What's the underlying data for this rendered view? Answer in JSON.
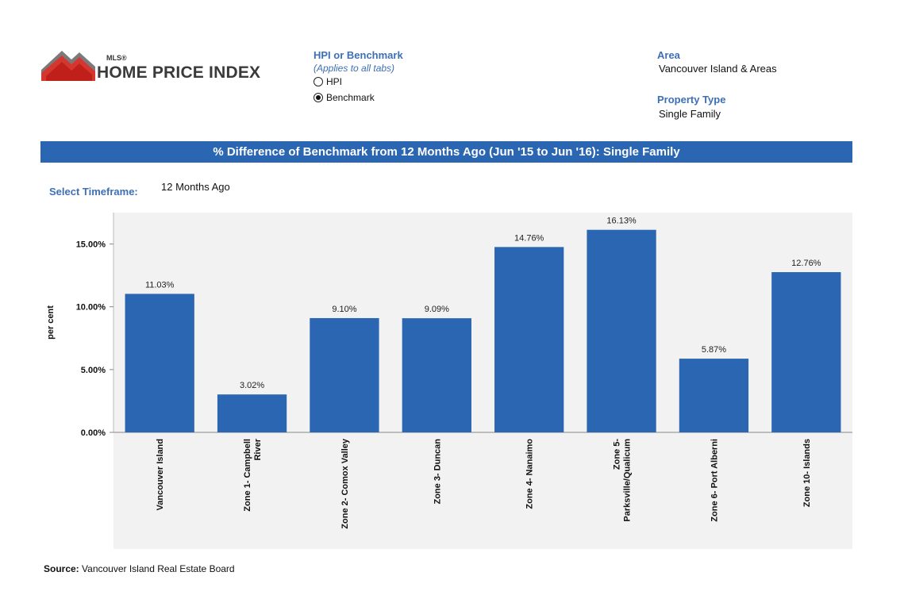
{
  "logo": {
    "mls": "MLS®",
    "name": "HOME PRICE INDEX"
  },
  "hpi_selector": {
    "title": "HPI or Benchmark",
    "subtitle": "(Applies to all tabs)",
    "options": [
      {
        "label": "HPI",
        "selected": false
      },
      {
        "label": "Benchmark",
        "selected": true
      }
    ]
  },
  "area": {
    "label": "Area",
    "value": "Vancouver Island & Areas"
  },
  "property_type": {
    "label": "Property Type",
    "value": "Single Family"
  },
  "timeframe": {
    "label": "Select Timeframe:",
    "value": "12 Months Ago"
  },
  "source": {
    "label": "Source:",
    "value": "Vancouver Island Real Estate Board"
  },
  "colors": {
    "bar": "#2a66b2",
    "banner": "#2a66b2",
    "accent": "#3d6fb6",
    "plot_bg": "#f2f2f2"
  },
  "chart_data": {
    "type": "bar",
    "title": "% Difference of Benchmark from 12 Months Ago (Jun '15 to Jun '16): Single Family",
    "xlabel": "",
    "ylabel": "per cent",
    "ylim": [
      0,
      17.5
    ],
    "yticks": [
      0,
      5,
      10,
      15
    ],
    "ytick_labels": [
      "0.00%",
      "5.00%",
      "10.00%",
      "15.00%"
    ],
    "grid": false,
    "categories": [
      [
        "Vancouver Island"
      ],
      [
        "Zone 1- Campbell",
        "River"
      ],
      [
        "Zone 2- Comox Valley"
      ],
      [
        "Zone 3- Duncan"
      ],
      [
        "Zone 4- Nanaimo"
      ],
      [
        "Zone 5-",
        "Parksville/Qualicum"
      ],
      [
        "Zone 6- Port Alberni"
      ],
      [
        "Zone 10- Islands"
      ]
    ],
    "values": [
      11.03,
      3.02,
      9.1,
      9.09,
      14.76,
      16.13,
      5.87,
      12.76
    ],
    "value_labels": [
      "11.03%",
      "3.02%",
      "9.10%",
      "9.09%",
      "14.76%",
      "16.13%",
      "5.87%",
      "12.76%"
    ]
  }
}
